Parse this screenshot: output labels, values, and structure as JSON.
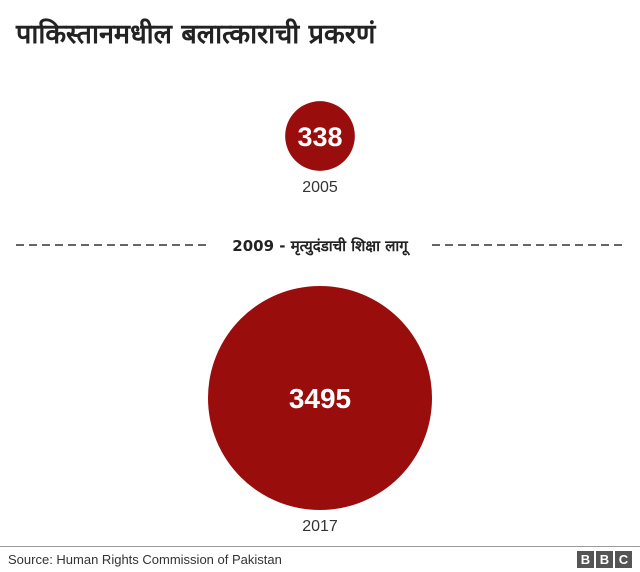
{
  "title": "पाकिस्तानमधील बलात्काराची प्रकरणं",
  "chart_data": {
    "type": "bubble",
    "title": "पाकिस्तानमधील बलात्काराची प्रकरणं",
    "points": [
      {
        "year": "2005",
        "value": 338
      },
      {
        "year": "2017",
        "value": 3495
      }
    ],
    "annotation": "2009 - मृत्युदंडाची शिक्षा लागू",
    "color": "#990d0d"
  },
  "footer": {
    "source": "Source: Human Rights Commission of Pakistan",
    "logo": [
      "B",
      "B",
      "C"
    ]
  }
}
